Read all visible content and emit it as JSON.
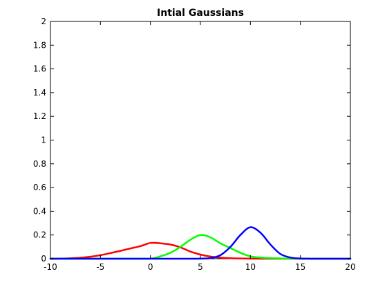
{
  "chart_data": {
    "type": "line",
    "title": "Intial Gaussians",
    "xlabel": "",
    "ylabel": "",
    "xlim": [
      -10,
      20
    ],
    "ylim": [
      0,
      2
    ],
    "x_ticks": [
      -10,
      -5,
      0,
      5,
      10,
      15,
      20
    ],
    "x_tick_labels": [
      "-10",
      "-5",
      "0",
      "5",
      "10",
      "15",
      "20"
    ],
    "y_ticks": [
      0,
      0.2,
      0.4,
      0.6,
      0.8,
      1,
      1.2,
      1.4,
      1.6,
      1.8,
      2
    ],
    "y_tick_labels": [
      "0",
      "0.2",
      "0.4",
      "0.6",
      "0.8",
      "1",
      "1.2",
      "1.4",
      "1.6",
      "1.8",
      "2"
    ],
    "grid": false,
    "legend": "none",
    "series": [
      {
        "color": "#ff0000",
        "x": [
          -10,
          -9,
          -8,
          -7,
          -6,
          -5,
          -4,
          -3,
          -2,
          -1,
          0,
          1,
          2,
          3,
          4,
          5,
          6,
          7,
          8,
          9,
          10,
          11,
          12,
          13,
          14,
          15,
          16,
          17,
          18,
          19,
          20
        ],
        "y": [
          0.0005,
          0.0015,
          0.0038,
          0.0085,
          0.017,
          0.0301,
          0.0474,
          0.0664,
          0.0869,
          0.1061,
          0.133,
          0.13,
          0.1195,
          0.096,
          0.06,
          0.035,
          0.018,
          0.009,
          0.0045,
          0.002,
          0.0008,
          0.0003,
          0.0001,
          0,
          0,
          0,
          0,
          0,
          0,
          0,
          0
        ]
      },
      {
        "color": "#00ff00",
        "x": [
          -10,
          -5,
          -2,
          0,
          1,
          2,
          3,
          4,
          5,
          6,
          7,
          8,
          9,
          10,
          11,
          12,
          13,
          14,
          15,
          16,
          20
        ],
        "y": [
          0,
          0,
          0.0001,
          0.0008,
          0.02,
          0.05,
          0.1,
          0.16,
          0.2,
          0.18,
          0.13,
          0.09,
          0.05,
          0.02,
          0.01,
          0.005,
          0.0025,
          0.001,
          0.0004,
          0.0001,
          0
        ]
      },
      {
        "color": "#0000ff",
        "x": [
          -10,
          0,
          3,
          4,
          5,
          6,
          7,
          8,
          9,
          10,
          11,
          12,
          13,
          14,
          15,
          16,
          20
        ],
        "y": [
          0,
          0,
          0,
          0.0001,
          0.001,
          0.005,
          0.03,
          0.1,
          0.2,
          0.265,
          0.22,
          0.12,
          0.04,
          0.01,
          0.002,
          0.0003,
          0
        ]
      }
    ]
  }
}
